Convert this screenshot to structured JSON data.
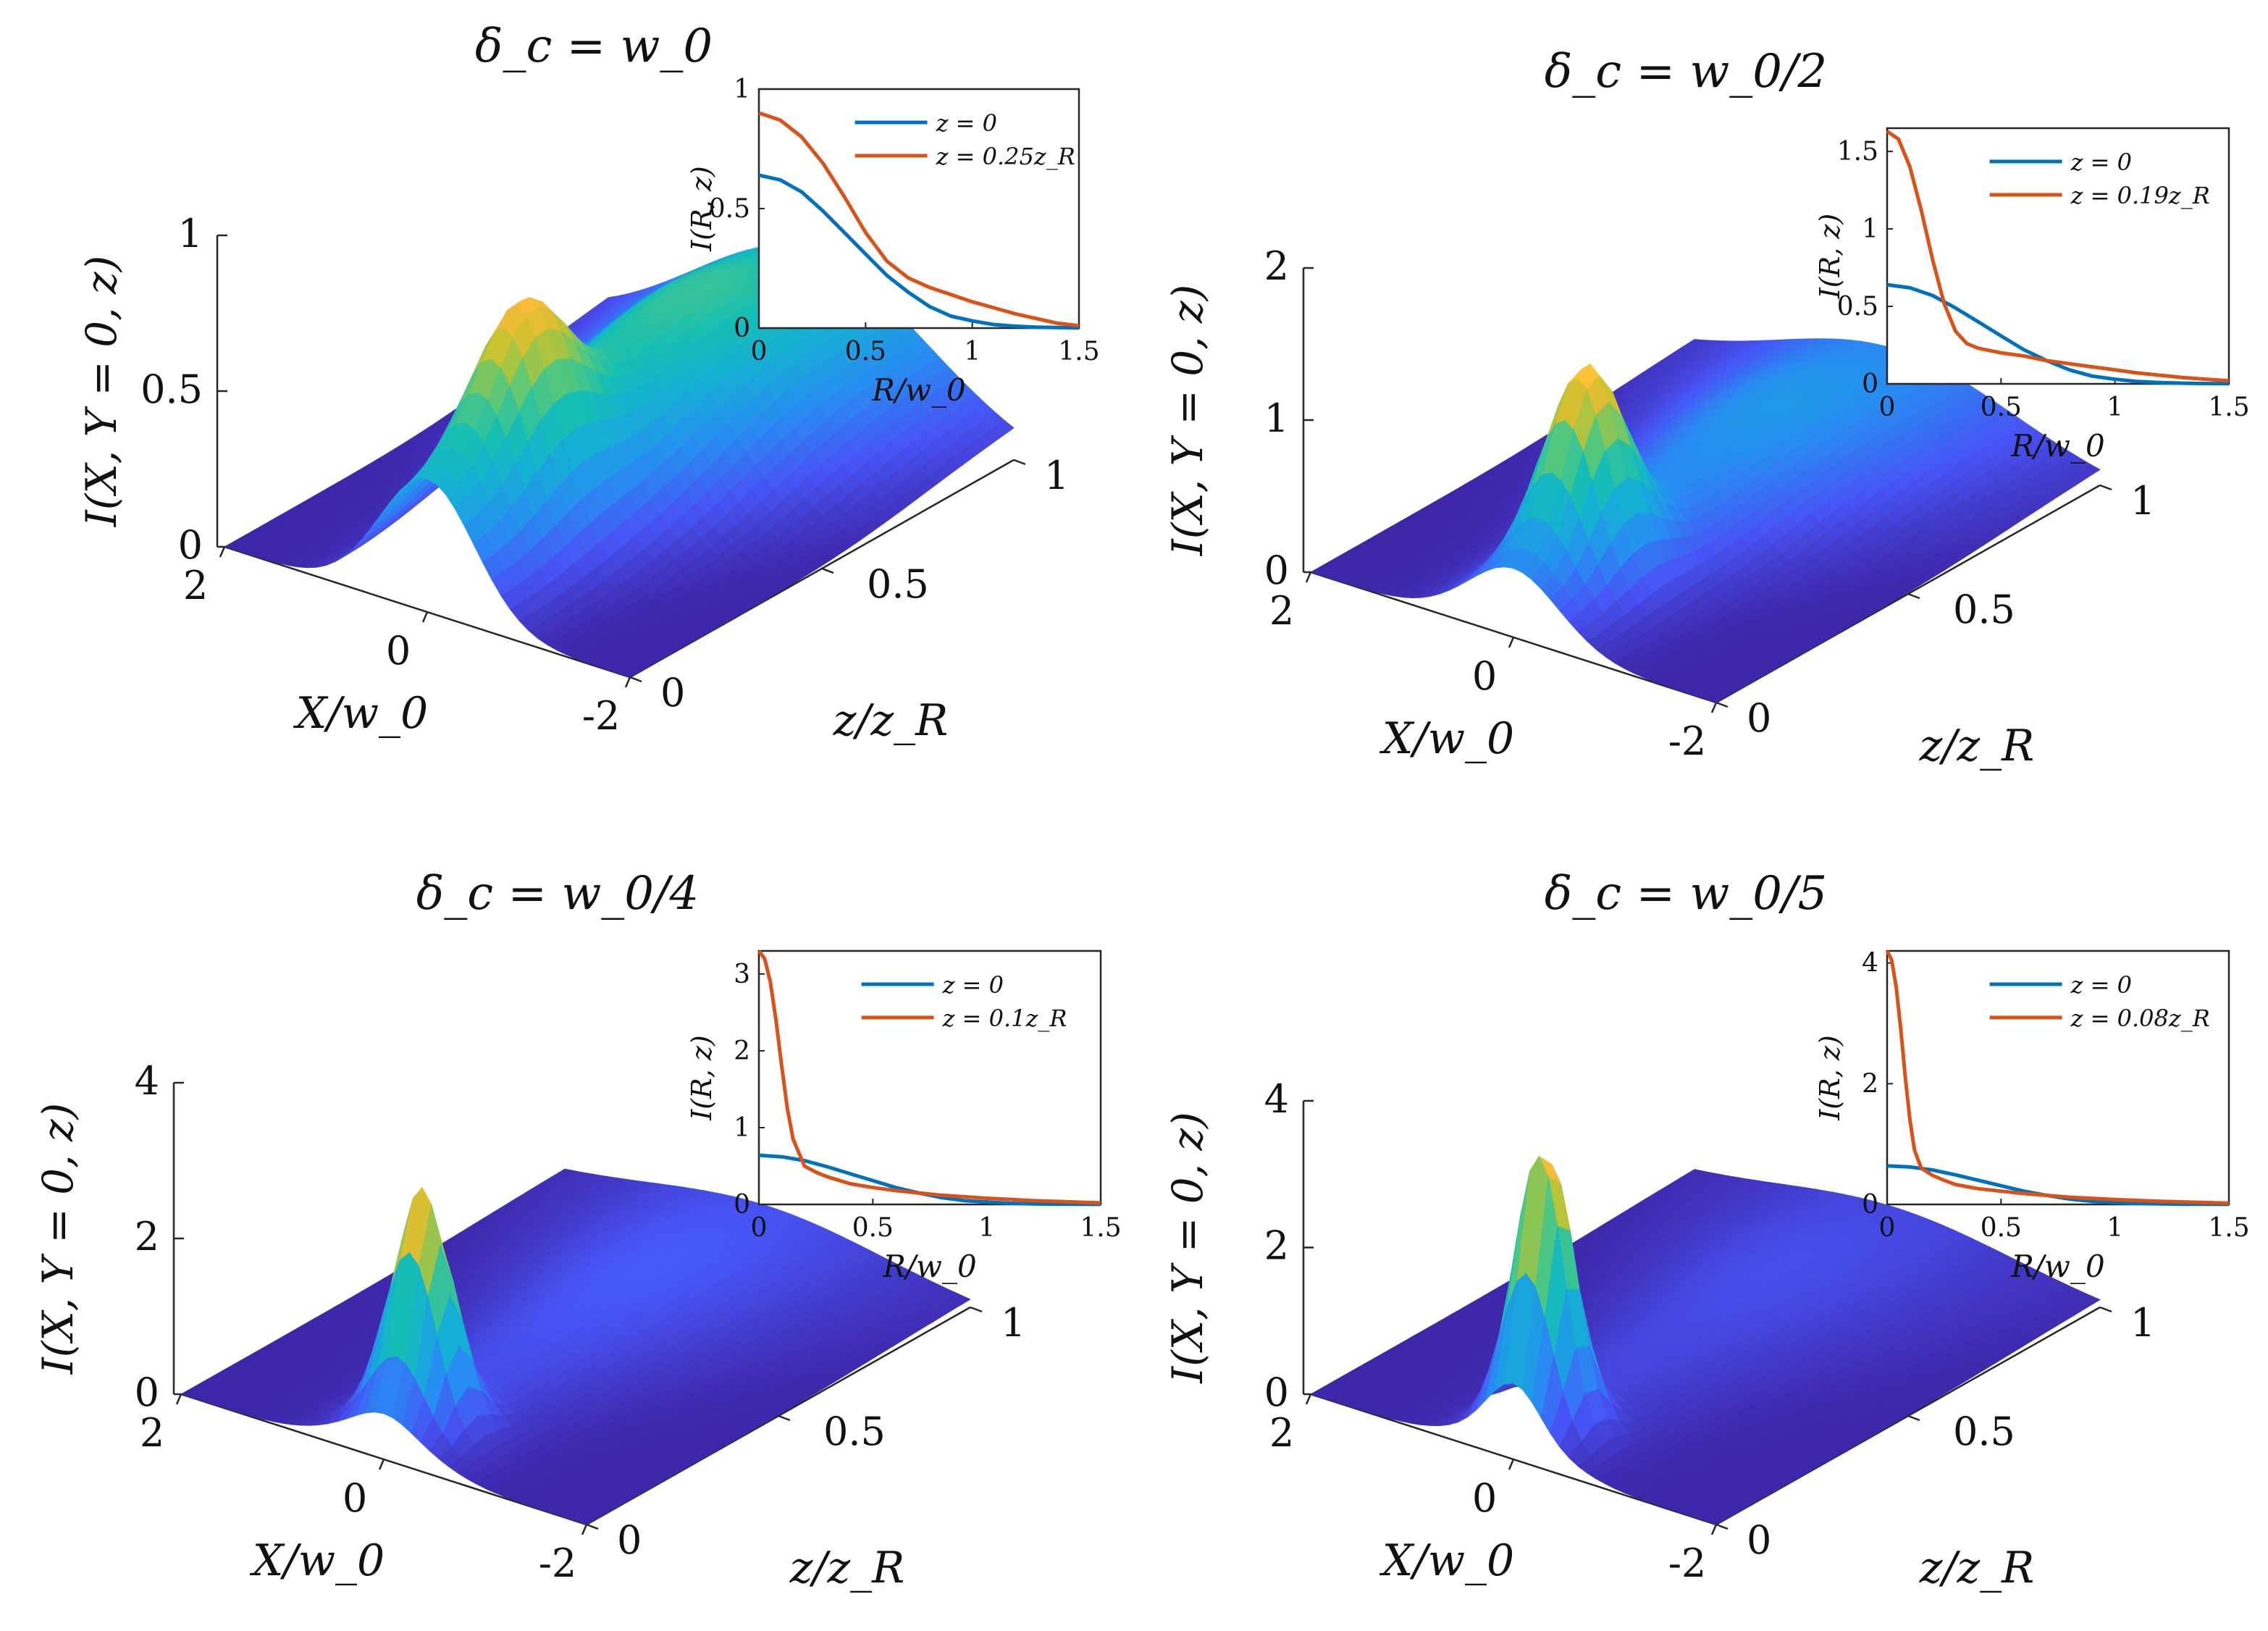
{
  "figure": {
    "surface_colormap": "parula",
    "colors": {
      "series_z0": "#0072BD",
      "series_zf": "#D95319",
      "axis": "#262626",
      "surface_low": "#3E26A8",
      "surface_high": "#F9FB0E"
    }
  },
  "chart_data": [
    {
      "panel": "top-left",
      "type": "surface",
      "title": "δ_c = w_0",
      "xlabel": "X/w_0",
      "ylabel": "z/z_R",
      "zlabel": "I(X, Y = 0, z)",
      "x_ticks": [
        "2",
        "0",
        "-2"
      ],
      "y_ticks": [
        "0",
        "0.5",
        "1"
      ],
      "z_ticks": [
        "0",
        "0.5",
        "1"
      ],
      "xlim": [
        -2,
        2
      ],
      "ylim": [
        0,
        1
      ],
      "zlim": [
        0,
        1
      ],
      "peak_z": 0.25,
      "peak_I": 0.9,
      "inset": {
        "type": "line",
        "xlabel": "R/w_0",
        "ylabel": "I(R, z)",
        "xlim": [
          0,
          1.5
        ],
        "ylim": [
          0,
          1
        ],
        "x_ticks": [
          "0",
          "0.5",
          "1",
          "1.5"
        ],
        "y_ticks": [
          "0",
          "0.5",
          "1"
        ],
        "legend": [
          "z = 0",
          "z = 0.25z_R"
        ],
        "series": [
          {
            "name": "z = 0",
            "x": [
              0,
              0.1,
              0.2,
              0.3,
              0.4,
              0.5,
              0.6,
              0.7,
              0.8,
              0.9,
              1.0,
              1.1,
              1.2,
              1.3,
              1.4,
              1.5
            ],
            "values": [
              0.64,
              0.62,
              0.57,
              0.49,
              0.4,
              0.31,
              0.22,
              0.15,
              0.09,
              0.05,
              0.03,
              0.015,
              0.008,
              0.004,
              0.002,
              0.001
            ]
          },
          {
            "name": "z = 0.25z_R",
            "x": [
              0,
              0.1,
              0.2,
              0.3,
              0.4,
              0.5,
              0.6,
              0.7,
              0.8,
              0.9,
              1.0,
              1.1,
              1.2,
              1.3,
              1.4,
              1.5
            ],
            "values": [
              0.9,
              0.87,
              0.8,
              0.69,
              0.55,
              0.4,
              0.28,
              0.21,
              0.17,
              0.14,
              0.11,
              0.085,
              0.06,
              0.04,
              0.02,
              0.01
            ]
          }
        ]
      }
    },
    {
      "panel": "top-right",
      "type": "surface",
      "title": "δ_c = w_0/2",
      "xlabel": "X/w_0",
      "ylabel": "z/z_R",
      "zlabel": "I(X, Y = 0, z)",
      "x_ticks": [
        "2",
        "0",
        "-2"
      ],
      "y_ticks": [
        "0",
        "0.5",
        "1"
      ],
      "z_ticks": [
        "0",
        "1",
        "2"
      ],
      "xlim": [
        -2,
        2
      ],
      "ylim": [
        0,
        1
      ],
      "zlim": [
        0,
        2
      ],
      "peak_z": 0.19,
      "peak_I": 1.6,
      "inset": {
        "type": "line",
        "xlabel": "R/w_0",
        "ylabel": "I(R, z)",
        "xlim": [
          0,
          1.5
        ],
        "ylim": [
          0,
          1.65
        ],
        "x_ticks": [
          "0",
          "0.5",
          "1",
          "1.5"
        ],
        "y_ticks": [
          "0",
          "0.5",
          "1",
          "1.5"
        ],
        "legend": [
          "z = 0",
          "z = 0.19z_R"
        ],
        "series": [
          {
            "name": "z = 0",
            "x": [
              0,
              0.1,
              0.2,
              0.3,
              0.4,
              0.5,
              0.6,
              0.7,
              0.8,
              0.9,
              1.0,
              1.1,
              1.2,
              1.3,
              1.4,
              1.5
            ],
            "values": [
              0.64,
              0.62,
              0.57,
              0.49,
              0.4,
              0.31,
              0.22,
              0.15,
              0.09,
              0.05,
              0.03,
              0.015,
              0.008,
              0.004,
              0.002,
              0.001
            ]
          },
          {
            "name": "z = 0.19z_R",
            "x": [
              0,
              0.05,
              0.1,
              0.15,
              0.2,
              0.25,
              0.3,
              0.35,
              0.4,
              0.5,
              0.6,
              0.7,
              0.8,
              0.9,
              1.0,
              1.1,
              1.2,
              1.3,
              1.4,
              1.5
            ],
            "values": [
              1.63,
              1.58,
              1.4,
              1.12,
              0.8,
              0.52,
              0.34,
              0.26,
              0.23,
              0.2,
              0.18,
              0.15,
              0.13,
              0.11,
              0.09,
              0.07,
              0.055,
              0.04,
              0.03,
              0.02
            ]
          }
        ]
      }
    },
    {
      "panel": "bottom-left",
      "type": "surface",
      "title": "δ_c = w_0/4",
      "xlabel": "X/w_0",
      "ylabel": "z/z_R",
      "zlabel": "I(X, Y = 0, z)",
      "x_ticks": [
        "2",
        "0",
        "-2"
      ],
      "y_ticks": [
        "0",
        "0.5",
        "1"
      ],
      "z_ticks": [
        "0",
        "2",
        "4"
      ],
      "xlim": [
        -2,
        2
      ],
      "ylim": [
        0,
        1
      ],
      "zlim": [
        0,
        4
      ],
      "peak_z": 0.1,
      "peak_I": 3.3,
      "inset": {
        "type": "line",
        "xlabel": "R/w_0",
        "ylabel": "I(R, z)",
        "xlim": [
          0,
          1.5
        ],
        "ylim": [
          0,
          3.3
        ],
        "x_ticks": [
          "0",
          "0.5",
          "1",
          "1.5"
        ],
        "y_ticks": [
          "0",
          "1",
          "2",
          "3"
        ],
        "legend": [
          "z = 0",
          "z = 0.1z_R"
        ],
        "series": [
          {
            "name": "z = 0",
            "x": [
              0,
              0.1,
              0.2,
              0.3,
              0.4,
              0.5,
              0.6,
              0.7,
              0.8,
              0.9,
              1.0,
              1.1,
              1.2,
              1.3,
              1.4,
              1.5
            ],
            "values": [
              0.64,
              0.62,
              0.57,
              0.49,
              0.4,
              0.31,
              0.22,
              0.15,
              0.09,
              0.05,
              0.03,
              0.015,
              0.008,
              0.004,
              0.002,
              0.001
            ]
          },
          {
            "name": "z = 0.1z_R",
            "x": [
              0,
              0.025,
              0.05,
              0.075,
              0.1,
              0.125,
              0.15,
              0.2,
              0.25,
              0.3,
              0.4,
              0.5,
              0.6,
              0.7,
              0.8,
              1.0,
              1.2,
              1.5
            ],
            "values": [
              3.3,
              3.2,
              2.9,
              2.4,
              1.8,
              1.25,
              0.85,
              0.5,
              0.42,
              0.36,
              0.27,
              0.22,
              0.18,
              0.15,
              0.12,
              0.08,
              0.05,
              0.02
            ]
          }
        ]
      }
    },
    {
      "panel": "bottom-right",
      "type": "surface",
      "title": "δ_c = w_0/5",
      "xlabel": "X/w_0",
      "ylabel": "z/z_R",
      "zlabel": "I(X, Y = 0, z)",
      "x_ticks": [
        "2",
        "0",
        "-2"
      ],
      "y_ticks": [
        "0",
        "0.5",
        "1"
      ],
      "z_ticks": [
        "0",
        "2",
        "4"
      ],
      "xlim": [
        -2,
        2
      ],
      "ylim": [
        0,
        1
      ],
      "zlim": [
        0,
        4
      ],
      "peak_z": 0.08,
      "peak_I": 4.2,
      "inset": {
        "type": "line",
        "xlabel": "R/w_0",
        "ylabel": "I(R, z)",
        "xlim": [
          0,
          1.5
        ],
        "ylim": [
          0,
          4.2
        ],
        "x_ticks": [
          "0",
          "0.5",
          "1",
          "1.5"
        ],
        "y_ticks": [
          "0",
          "2",
          "4"
        ],
        "legend": [
          "z = 0",
          "z = 0.08z_R"
        ],
        "series": [
          {
            "name": "z = 0",
            "x": [
              0,
              0.1,
              0.2,
              0.3,
              0.4,
              0.5,
              0.6,
              0.7,
              0.8,
              0.9,
              1.0,
              1.1,
              1.2,
              1.3,
              1.4,
              1.5
            ],
            "values": [
              0.64,
              0.62,
              0.57,
              0.49,
              0.4,
              0.31,
              0.22,
              0.15,
              0.09,
              0.05,
              0.03,
              0.015,
              0.008,
              0.004,
              0.002,
              0.001
            ]
          },
          {
            "name": "z = 0.08z_R",
            "x": [
              0,
              0.02,
              0.04,
              0.06,
              0.08,
              0.1,
              0.12,
              0.15,
              0.2,
              0.25,
              0.3,
              0.4,
              0.5,
              0.6,
              0.8,
              1.0,
              1.2,
              1.5
            ],
            "values": [
              4.2,
              4.05,
              3.6,
              2.9,
              2.1,
              1.4,
              0.9,
              0.6,
              0.48,
              0.4,
              0.33,
              0.26,
              0.22,
              0.18,
              0.12,
              0.08,
              0.05,
              0.02
            ]
          }
        ]
      }
    }
  ]
}
